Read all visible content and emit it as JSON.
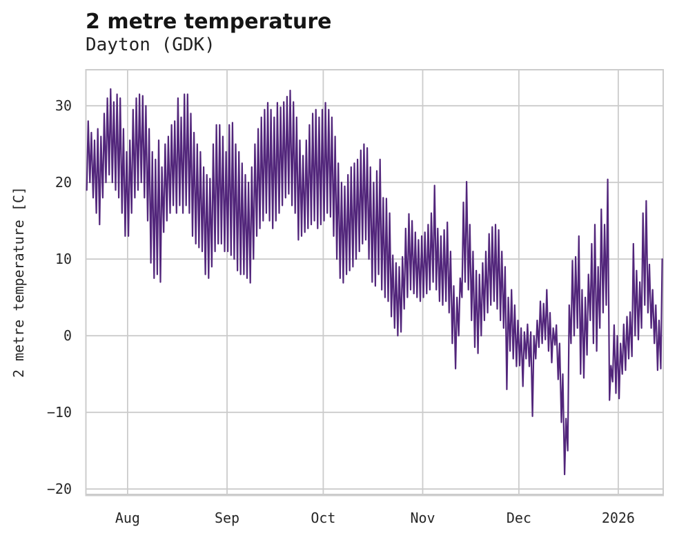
{
  "header": {
    "title": "2 metre temperature",
    "subtitle": "Dayton (GDK)"
  },
  "chart_data": {
    "type": "line",
    "title": "2 metre temperature",
    "subtitle": "Dayton (GDK)",
    "xlabel": "",
    "ylabel": "2 metre temperature [C]",
    "ylim": [
      -20.7,
      34.7
    ],
    "grid_on": true,
    "legend": null,
    "line_color": "#52267b",
    "grid_color": "#cbcbcb",
    "spine_color": "#cccccc",
    "yticks": [
      {
        "value": 30,
        "label": "30"
      },
      {
        "value": 20,
        "label": "20"
      },
      {
        "value": 10,
        "label": "10"
      },
      {
        "value": 0,
        "label": "0"
      },
      {
        "value": -10,
        "label": "−10"
      },
      {
        "value": -20,
        "label": "−20"
      }
    ],
    "x_span_days": 180,
    "x_start": "Jul 19 2025",
    "x_end": "Jan 15 2026",
    "xticks": [
      {
        "day": 13,
        "label": "Aug"
      },
      {
        "day": 44,
        "label": "Sep"
      },
      {
        "day": 74,
        "label": "Oct"
      },
      {
        "day": 105,
        "label": "Nov"
      },
      {
        "day": 135,
        "label": "Dec"
      },
      {
        "day": 166,
        "label": "2026"
      }
    ],
    "series": [
      {
        "name": "2 metre temperature",
        "unit": "C",
        "daily_format": [
          "date",
          "min_c",
          "max_c"
        ],
        "daily": [
          [
            "Jul 19",
            19,
            28
          ],
          [
            "Jul 20",
            20,
            26.5
          ],
          [
            "Jul 21",
            18,
            25.5
          ],
          [
            "Jul 22",
            16,
            27
          ],
          [
            "Jul 23",
            14.5,
            26
          ],
          [
            "Jul 24",
            18,
            29
          ],
          [
            "Jul 25",
            20,
            31
          ],
          [
            "Jul 26",
            21,
            32.2
          ],
          [
            "Jul 27",
            20,
            30.5
          ],
          [
            "Jul 28",
            19,
            31.5
          ],
          [
            "Jul 29",
            18,
            31
          ],
          [
            "Jul 30",
            16,
            27
          ],
          [
            "Jul 31",
            13,
            24
          ],
          [
            "Aug 1",
            13,
            25.5
          ],
          [
            "Aug 2",
            16,
            29.5
          ],
          [
            "Aug 3",
            18,
            31
          ],
          [
            "Aug 4",
            19,
            31.5
          ],
          [
            "Aug 5",
            20,
            31.3
          ],
          [
            "Aug 6",
            18,
            30
          ],
          [
            "Aug 7",
            15,
            27
          ],
          [
            "Aug 8",
            9.5,
            24
          ],
          [
            "Aug 9",
            7.5,
            23
          ],
          [
            "Aug 10",
            8,
            25.5
          ],
          [
            "Aug 11",
            7,
            22
          ],
          [
            "Aug 12",
            13.5,
            25
          ],
          [
            "Aug 13",
            15,
            26
          ],
          [
            "Aug 14",
            16,
            27.5
          ],
          [
            "Aug 15",
            17,
            28
          ],
          [
            "Aug 16",
            16,
            31
          ],
          [
            "Aug 17",
            17,
            28.5
          ],
          [
            "Aug 18",
            16,
            31.5
          ],
          [
            "Aug 19",
            17,
            31.5
          ],
          [
            "Aug 20",
            16,
            29
          ],
          [
            "Aug 21",
            13,
            26.5
          ],
          [
            "Aug 22",
            12,
            25
          ],
          [
            "Aug 23",
            11.5,
            24
          ],
          [
            "Aug 24",
            11,
            22
          ],
          [
            "Aug 25",
            8,
            21
          ],
          [
            "Aug 26",
            7.5,
            20.5
          ],
          [
            "Aug 27",
            9,
            25
          ],
          [
            "Aug 28",
            11,
            27.5
          ],
          [
            "Aug 29",
            12,
            27.5
          ],
          [
            "Aug 30",
            12,
            26
          ],
          [
            "Aug 31",
            11,
            24
          ],
          [
            "Sep 1",
            11,
            27.5
          ],
          [
            "Sep 2",
            10.5,
            27.8
          ],
          [
            "Sep 3",
            10,
            25
          ],
          [
            "Sep 4",
            8.5,
            24
          ],
          [
            "Sep 5",
            8,
            22.5
          ],
          [
            "Sep 6",
            8,
            21
          ],
          [
            "Sep 7",
            7.5,
            20
          ],
          [
            "Sep 8",
            6.9,
            22
          ],
          [
            "Sep 9",
            10,
            25
          ],
          [
            "Sep 10",
            13,
            27
          ],
          [
            "Sep 11",
            14,
            28.5
          ],
          [
            "Sep 12",
            15,
            29.5
          ],
          [
            "Sep 13",
            16,
            30.4
          ],
          [
            "Sep 14",
            15,
            29.5
          ],
          [
            "Sep 15",
            14,
            28.5
          ],
          [
            "Sep 16",
            15,
            30.4
          ],
          [
            "Sep 17",
            16,
            29.8
          ],
          [
            "Sep 18",
            17,
            30.5
          ],
          [
            "Sep 19",
            18,
            31.2
          ],
          [
            "Sep 20",
            18.5,
            32
          ],
          [
            "Sep 21",
            17,
            30.5
          ],
          [
            "Sep 22",
            16,
            28.5
          ],
          [
            "Sep 23",
            12.5,
            25.5
          ],
          [
            "Sep 24",
            13,
            23.5
          ],
          [
            "Sep 25",
            13.5,
            25.5
          ],
          [
            "Sep 26",
            14,
            27.5
          ],
          [
            "Sep 27",
            14.5,
            29
          ],
          [
            "Sep 28",
            15,
            29.5
          ],
          [
            "Sep 29",
            14,
            28.5
          ],
          [
            "Sep 30",
            14.5,
            29.5
          ],
          [
            "Oct 1",
            15,
            30.4
          ],
          [
            "Oct 2",
            16,
            29.5
          ],
          [
            "Oct 3",
            15.5,
            28.5
          ],
          [
            "Oct 4",
            13,
            26
          ],
          [
            "Oct 5",
            10,
            22.5
          ],
          [
            "Oct 6",
            7.5,
            20
          ],
          [
            "Oct 7",
            6.9,
            19.5
          ],
          [
            "Oct 8",
            8,
            21
          ],
          [
            "Oct 9",
            8.5,
            22
          ],
          [
            "Oct 10",
            9,
            22.5
          ],
          [
            "Oct 11",
            10,
            23
          ],
          [
            "Oct 12",
            11,
            24.2
          ],
          [
            "Oct 13",
            12,
            25
          ],
          [
            "Oct 14",
            12.5,
            24.5
          ],
          [
            "Oct 15",
            10,
            22
          ],
          [
            "Oct 16",
            7,
            20
          ],
          [
            "Oct 17",
            6.5,
            21.5
          ],
          [
            "Oct 18",
            8,
            23
          ],
          [
            "Oct 19",
            6,
            18
          ],
          [
            "Oct 20",
            5,
            17.9
          ],
          [
            "Oct 21",
            4.5,
            16
          ],
          [
            "Oct 22",
            2.5,
            10.5
          ],
          [
            "Oct 23",
            1,
            9.5
          ],
          [
            "Oct 24",
            0,
            9
          ],
          [
            "Oct 25",
            0.5,
            10.3
          ],
          [
            "Oct 26",
            3.5,
            14
          ],
          [
            "Oct 27",
            5,
            15.9
          ],
          [
            "Oct 28",
            6,
            15
          ],
          [
            "Oct 29",
            5.5,
            13.5
          ],
          [
            "Oct 30",
            5,
            12.5
          ],
          [
            "Oct 31",
            4.5,
            13
          ],
          [
            "Nov 1",
            5,
            13.5
          ],
          [
            "Nov 2",
            5.5,
            14.5
          ],
          [
            "Nov 3",
            6,
            16
          ],
          [
            "Nov 4",
            7,
            19.6
          ],
          [
            "Nov 5",
            6,
            14
          ],
          [
            "Nov 6",
            4.5,
            13
          ],
          [
            "Nov 7",
            4,
            13.8
          ],
          [
            "Nov 8",
            4.5,
            14.8
          ],
          [
            "Nov 9",
            3,
            11
          ],
          [
            "Nov 10",
            -1,
            6.5
          ],
          [
            "Nov 11",
            -4.3,
            5
          ],
          [
            "Nov 12",
            0,
            7.5
          ],
          [
            "Nov 13",
            5,
            17.4
          ],
          [
            "Nov 14",
            7,
            20.1
          ],
          [
            "Nov 15",
            6,
            14.5
          ],
          [
            "Nov 16",
            2,
            11
          ],
          [
            "Nov 17",
            -1.5,
            8.5
          ],
          [
            "Nov 18",
            -2.3,
            8
          ],
          [
            "Nov 19",
            0,
            9.5
          ],
          [
            "Nov 20",
            2,
            11
          ],
          [
            "Nov 21",
            3,
            13.3
          ],
          [
            "Nov 22",
            4,
            14.2
          ],
          [
            "Nov 23",
            4.5,
            14.5
          ],
          [
            "Nov 24",
            3.5,
            13.8
          ],
          [
            "Nov 25",
            2,
            11
          ],
          [
            "Nov 26",
            1,
            9
          ],
          [
            "Nov 27",
            -7,
            5
          ],
          [
            "Nov 28",
            -2,
            6
          ],
          [
            "Nov 29",
            -3,
            4
          ],
          [
            "Nov 30",
            -4,
            2
          ],
          [
            "Dec 1",
            -3.9,
            1
          ],
          [
            "Dec 2",
            -6.6,
            0.5
          ],
          [
            "Dec 3",
            -3,
            1.5
          ],
          [
            "Dec 4",
            -4,
            0.5
          ],
          [
            "Dec 5",
            -10.5,
            0
          ],
          [
            "Dec 6",
            -3,
            2
          ],
          [
            "Dec 7",
            -1.5,
            4.5
          ],
          [
            "Dec 8",
            -1,
            4.2
          ],
          [
            "Dec 9",
            -0.5,
            6
          ],
          [
            "Dec 10",
            -2,
            3
          ],
          [
            "Dec 11",
            -3.5,
            1
          ],
          [
            "Dec 12",
            -1.2,
            1.4
          ],
          [
            "Dec 13",
            -5.7,
            -1
          ],
          [
            "Dec 14",
            -11.3,
            -5
          ],
          [
            "Dec 15",
            -18.1,
            -10.8
          ],
          [
            "Dec 16",
            -15,
            4
          ],
          [
            "Dec 17",
            -1,
            9.8
          ],
          [
            "Dec 18",
            0,
            10.3
          ],
          [
            "Dec 19",
            1,
            13
          ],
          [
            "Dec 20",
            -5,
            6
          ],
          [
            "Dec 21",
            -5.5,
            5
          ],
          [
            "Dec 22",
            -2.5,
            8
          ],
          [
            "Dec 23",
            2,
            12
          ],
          [
            "Dec 24",
            -1,
            14.5
          ],
          [
            "Dec 25",
            -2,
            9
          ],
          [
            "Dec 26",
            1,
            16.5
          ],
          [
            "Dec 27",
            3,
            14.5
          ],
          [
            "Dec 28",
            4,
            20.4
          ],
          [
            "Dec 29",
            -8.4,
            -3.9
          ],
          [
            "Dec 30",
            -6,
            1.4
          ],
          [
            "Dec 31",
            -7.5,
            0
          ],
          [
            "Jan 1",
            -8.2,
            -1
          ],
          [
            "Jan 2",
            -5,
            1.5
          ],
          [
            "Jan 3",
            -4.5,
            2.5
          ],
          [
            "Jan 4",
            -3,
            3.1
          ],
          [
            "Jan 5",
            -2.7,
            12
          ],
          [
            "Jan 6",
            0,
            8.5
          ],
          [
            "Jan 7",
            -0.5,
            7
          ],
          [
            "Jan 8",
            1,
            16
          ],
          [
            "Jan 9",
            4,
            17.6
          ],
          [
            "Jan 10",
            3,
            9.3
          ],
          [
            "Jan 11",
            1,
            6
          ],
          [
            "Jan 12",
            -1,
            4
          ],
          [
            "Jan 13",
            -4.5,
            2
          ],
          [
            "Jan 14",
            -4.3,
            10
          ]
        ]
      }
    ]
  }
}
